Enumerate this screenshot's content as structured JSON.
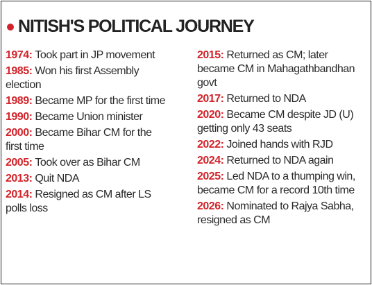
{
  "title": "NITISH'S POLITICAL JOURNEY",
  "columns": [
    {
      "entries": [
        {
          "year": "1974:",
          "text": "Took part in JP movement"
        },
        {
          "year": "1985:",
          "text": "Won his first Assembly election"
        },
        {
          "year": "1989:",
          "text": "Became MP for the first time"
        },
        {
          "year": "1990:",
          "text": "Became Union minister"
        },
        {
          "year": "2000:",
          "text": "Became Bihar CM for the first time"
        },
        {
          "year": "2005:",
          "text": "Took over as Bihar CM"
        },
        {
          "year": "2013:",
          "text": "Quit NDA"
        },
        {
          "year": "2014:",
          "text": "Resigned as CM after LS polls loss"
        }
      ]
    },
    {
      "entries": [
        {
          "year": "2015:",
          "text": "Returned as CM; later became CM in Mahagathbandhan govt"
        },
        {
          "year": "2017:",
          "text": "Returned to NDA"
        },
        {
          "year": "2020:",
          "text": "Became CM despite JD (U) getting only 43 seats"
        },
        {
          "year": "2022:",
          "text": "Joined hands with RJD"
        },
        {
          "year": "2024:",
          "text": "Returned to NDA again"
        },
        {
          "year": "2025:",
          "text": "Led NDA to a thumping win, became CM for a record 10th time"
        },
        {
          "year": "2026:",
          "text": "Nominated to Rajya Sabha, resigned as CM"
        }
      ]
    }
  ]
}
